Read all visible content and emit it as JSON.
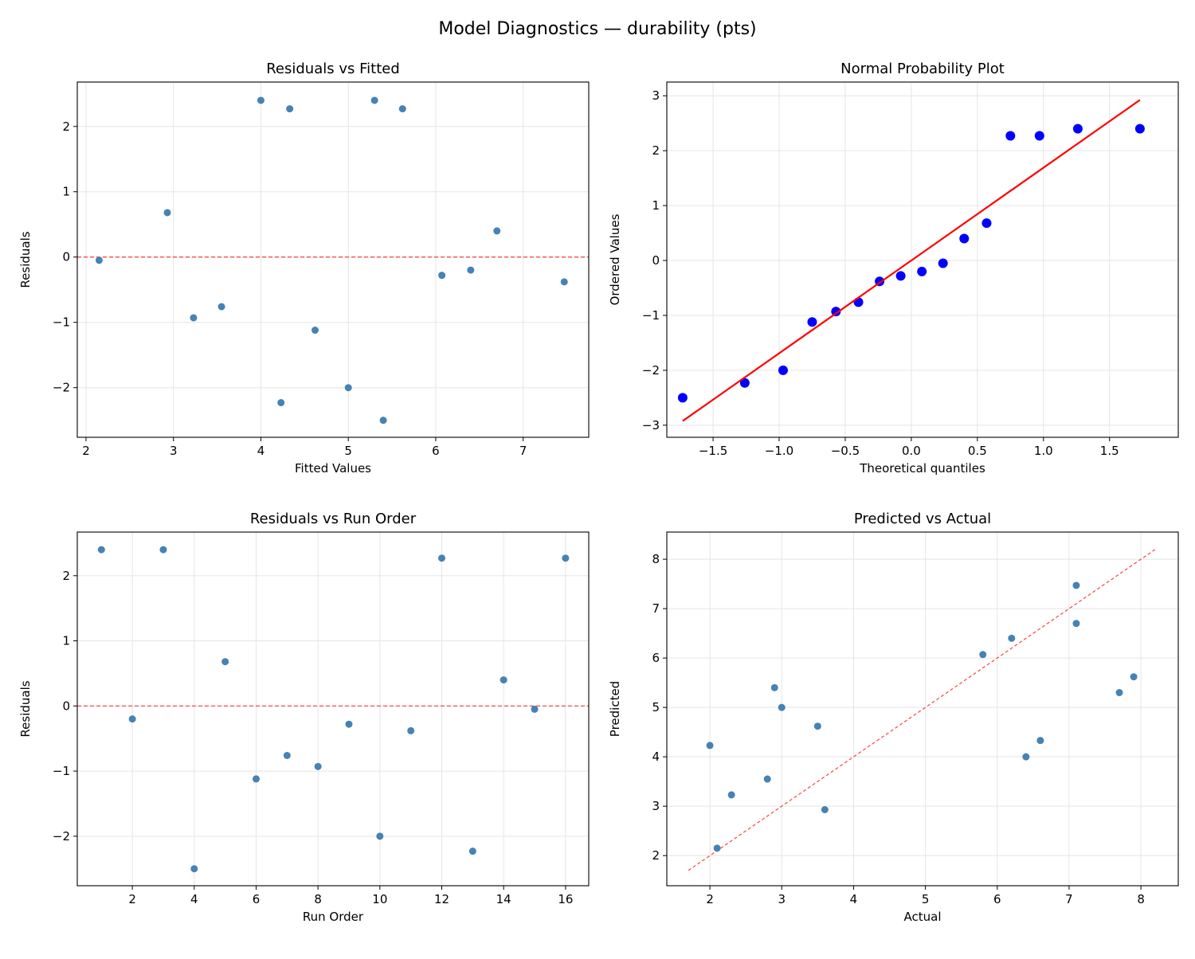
{
  "suptitle": "Model Diagnostics — durability (pts)",
  "colors": {
    "point": "#4682b4",
    "qq_point": "#0000ff",
    "qq_line": "#ff0000",
    "ref_line": "#ff0000",
    "grid": "#e5e5e5"
  },
  "chart_data": [
    {
      "type": "scatter",
      "title": "Residuals vs Fitted",
      "xlabel": "Fitted Values",
      "ylabel": "Residuals",
      "xlim": [
        1.9,
        7.75
      ],
      "ylim": [
        -2.76,
        2.68
      ],
      "xticks": [
        2,
        3,
        4,
        5,
        6,
        7
      ],
      "yticks": [
        -2,
        -1,
        0,
        1,
        2
      ],
      "xtick_labels": [
        "2",
        "3",
        "4",
        "5",
        "6",
        "7"
      ],
      "ytick_labels": [
        "−2",
        "−1",
        "0",
        "1",
        "2"
      ],
      "grid": true,
      "hline": 0,
      "x": [
        2.15,
        2.93,
        3.23,
        3.55,
        4.0,
        4.23,
        4.33,
        4.62,
        5.0,
        5.3,
        5.4,
        5.62,
        6.07,
        6.4,
        6.7,
        7.47
      ],
      "y": [
        -0.05,
        0.68,
        -0.93,
        -0.76,
        2.4,
        -2.23,
        2.27,
        -1.12,
        -2.0,
        2.4,
        -2.5,
        2.27,
        -0.28,
        -0.2,
        0.4,
        -0.38
      ]
    },
    {
      "type": "scatter",
      "title": "Normal Probability Plot",
      "xlabel": "Theoretical quantiles",
      "ylabel": "Ordered Values",
      "xlim": [
        -1.85,
        2.02
      ],
      "ylim": [
        -3.22,
        3.25
      ],
      "xticks": [
        -1.5,
        -1.0,
        -0.5,
        0.0,
        0.5,
        1.0,
        1.5
      ],
      "yticks": [
        -3,
        -2,
        -1,
        0,
        1,
        2,
        3
      ],
      "xtick_labels": [
        "−1.5",
        "−1.0",
        "−0.5",
        "0.0",
        "0.5",
        "1.0",
        "1.5"
      ],
      "ytick_labels": [
        "−3",
        "−2",
        "−1",
        "0",
        "1",
        "2",
        "3"
      ],
      "grid": true,
      "fit_line": {
        "slope": 1.69,
        "intercept": 0.0,
        "x_range": [
          -1.73,
          1.73
        ]
      },
      "x": [
        -1.73,
        -1.26,
        -0.97,
        -0.75,
        -0.57,
        -0.4,
        -0.24,
        -0.08,
        0.08,
        0.24,
        0.4,
        0.57,
        0.75,
        0.97,
        1.26,
        1.73
      ],
      "y": [
        -2.5,
        -2.23,
        -2.0,
        -1.12,
        -0.93,
        -0.76,
        -0.38,
        -0.28,
        -0.2,
        -0.05,
        0.4,
        0.68,
        2.27,
        2.27,
        2.4,
        2.4
      ]
    },
    {
      "type": "scatter",
      "title": "Residuals vs Run Order",
      "xlabel": "Run Order",
      "ylabel": "Residuals",
      "xlim": [
        0.22,
        16.75
      ],
      "ylim": [
        -2.76,
        2.67
      ],
      "xticks": [
        2,
        4,
        6,
        8,
        10,
        12,
        14,
        16
      ],
      "yticks": [
        -2,
        -1,
        0,
        1,
        2
      ],
      "xtick_labels": [
        "2",
        "4",
        "6",
        "8",
        "10",
        "12",
        "14",
        "16"
      ],
      "ytick_labels": [
        "−2",
        "−1",
        "0",
        "1",
        "2"
      ],
      "grid": true,
      "hline": 0,
      "x": [
        1,
        2,
        3,
        4,
        5,
        6,
        7,
        8,
        9,
        10,
        11,
        12,
        13,
        14,
        15,
        16
      ],
      "y": [
        2.4,
        -0.2,
        2.4,
        -2.5,
        0.68,
        -1.12,
        -0.76,
        -0.93,
        -0.28,
        -2.0,
        -0.38,
        2.27,
        -2.23,
        0.4,
        -0.05,
        2.27
      ]
    },
    {
      "type": "scatter",
      "title": "Predicted vs Actual",
      "xlabel": "Actual",
      "ylabel": "Predicted",
      "xlim": [
        1.4,
        8.52
      ],
      "ylim": [
        1.39,
        8.55
      ],
      "xticks": [
        2,
        3,
        4,
        5,
        6,
        7,
        8
      ],
      "yticks": [
        2,
        3,
        4,
        5,
        6,
        7,
        8
      ],
      "xtick_labels": [
        "2",
        "3",
        "4",
        "5",
        "6",
        "7",
        "8"
      ],
      "ytick_labels": [
        "2",
        "3",
        "4",
        "5",
        "6",
        "7",
        "8"
      ],
      "grid": true,
      "diagonal": [
        1.7,
        8.2
      ],
      "x": [
        2.0,
        2.1,
        2.3,
        2.8,
        2.9,
        3.0,
        3.5,
        3.6,
        5.8,
        6.2,
        6.4,
        6.6,
        7.1,
        7.1,
        7.7,
        7.9
      ],
      "y": [
        4.23,
        2.15,
        3.23,
        3.55,
        5.4,
        5.0,
        4.62,
        2.93,
        6.07,
        6.4,
        4.0,
        4.33,
        7.47,
        6.7,
        5.3,
        5.62
      ]
    }
  ]
}
